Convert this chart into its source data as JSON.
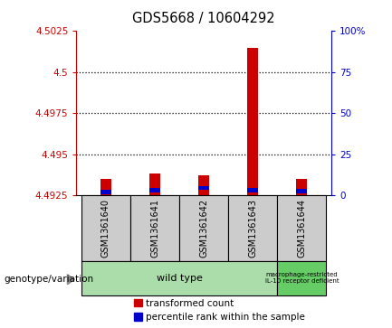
{
  "title": "GDS5668 / 10604292",
  "samples": [
    "GSM1361640",
    "GSM1361641",
    "GSM1361642",
    "GSM1361643",
    "GSM1361644"
  ],
  "transformed_counts": [
    4.4935,
    4.4938,
    4.4937,
    4.5015,
    4.4935
  ],
  "percentile_ranks": [
    2.0,
    3.0,
    4.5,
    3.0,
    2.5
  ],
  "ylim_left": [
    4.4925,
    4.5025
  ],
  "ylim_right": [
    0,
    100
  ],
  "yticks_left": [
    4.4925,
    4.495,
    4.4975,
    4.5,
    4.5025
  ],
  "yticks_right": [
    0,
    25,
    50,
    75,
    100
  ],
  "ytick_labels_left": [
    "4.4925",
    "4.495",
    "4.4975",
    "4.5",
    "4.5025"
  ],
  "ytick_labels_right": [
    "0",
    "25",
    "50",
    "75",
    "100%"
  ],
  "red_color": "#cc0000",
  "blue_color": "#0000cc",
  "bg_sample_box": "#cccccc",
  "bg_wildtype": "#aaddaa",
  "bg_mutant": "#66cc66",
  "left_tick_color": "#cc0000",
  "right_tick_color": "#0000cc",
  "legend_red_label": "transformed count",
  "legend_blue_label": "percentile rank within the sample",
  "wt_label": "wild type",
  "mut_label": "macrophage-restricted\nIL-10 receptor deficient",
  "geno_label": "genotype/variation"
}
